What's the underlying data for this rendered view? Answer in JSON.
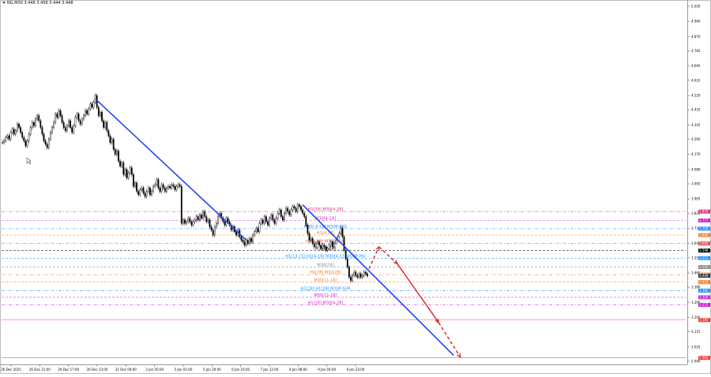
{
  "header": {
    "symbol_text": "NG,M30  3.446 3.456 3.444 3.448"
  },
  "colors": {
    "background": "#ffffff",
    "candle": "#000000",
    "trendline": "#1f45e6",
    "forecast": "#e02020",
    "grid_dash": "#c8c8c8"
  },
  "price_scale": {
    "min": 2.94,
    "max": 5.05,
    "ticks": [
      "5.050",
      "4.960",
      "4.870",
      "4.785",
      "4.695",
      "4.610",
      "4.520",
      "4.435",
      "4.345",
      "4.260",
      "4.170",
      "4.080",
      "3.995",
      "3.905",
      "3.820",
      "3.730",
      "3.640",
      "3.555",
      "3.465",
      "3.380",
      "3.290",
      "3.200",
      "3.115",
      "3.025",
      "2.940"
    ]
  },
  "time_scale": {
    "ticks": [
      "26 Dec 2025",
      "26 Dec 21:00",
      "29 Dec 17:00",
      "30 Dec 13:00",
      "31 Dec 09:00",
      "2 Jan 05:00",
      "5 Jan 01:00",
      "5 Jan 20:00",
      "6 Jan 16:00",
      "7 Jan 12:00",
      "8 Jan 08:00",
      "9 Jan 04:00",
      "9 Jan 23:00"
    ]
  },
  "levels": [
    {
      "label": "H1[78] M30[4-28]",
      "price": 3.83,
      "color": "#d6337a",
      "style": "dashdot",
      "badge": "3.830"
    },
    {
      "label": "M30[4-18]",
      "price": 3.777,
      "color": "#cc22cc",
      "style": "dash",
      "badge": "3.777"
    },
    {
      "label": "M30[ 4-18] M30P-RES",
      "price": 3.728,
      "color": "#1e90ff",
      "style": "dashdot",
      "badge": "3.728"
    },
    {
      "label": "H1[4-18]",
      "price": 3.69,
      "color": "#f08030",
      "style": "dash",
      "badge": "3.690"
    },
    {
      "label": "H1[4-18] M30[4-28]",
      "price": 3.64,
      "color": "#e05050",
      "style": "dashdot",
      "badge": "3.640"
    },
    {
      "label": "M30[4-18]",
      "price": 3.598,
      "color": "#000000",
      "style": "dash",
      "badge": "3.598"
    },
    {
      "label": "H1[13-15] H1[4-18] M30[4-13] M30P-PIV",
      "price": 3.553,
      "color": "#1e90ff",
      "style": "dash",
      "badge": "3.553"
    },
    {
      "label": "M30[24]",
      "price": 3.5,
      "color": "#888888",
      "style": "dash",
      "badge": "3.500"
    },
    {
      "label": "H1[28] M30[28]",
      "price": 3.455,
      "color": "#f08030",
      "style": "dashdot",
      "badge": "3.455"
    },
    {
      "label": "M30[11-18]",
      "price": 3.41,
      "color": "#f08030",
      "style": "dash",
      "badge": "3.410"
    },
    {
      "label": "H1[18] H1[28] M30P-SUP",
      "price": 3.36,
      "color": "#1e90ff",
      "style": "dashdot",
      "badge": "3.360"
    },
    {
      "label": "M30[11-18]",
      "price": 3.32,
      "color": "#cc22cc",
      "style": "dash",
      "badge": "3.320"
    },
    {
      "label": "H1[18] M30[4-28]",
      "price": 3.275,
      "color": "#cc22cc",
      "style": "dashdot",
      "badge": "3.275"
    },
    {
      "label": "",
      "price": 3.185,
      "color": "#ff3333",
      "style": "solid",
      "badge": "3.185"
    },
    {
      "label": "",
      "price": 2.96,
      "color": "#ff3333",
      "style": "solid",
      "badge": "2.960"
    }
  ],
  "current_price": {
    "value": "3.448",
    "badge_color": "#333333"
  },
  "trendlines": [
    {
      "from": {
        "index": 56,
        "price": 4.5
      },
      "to": {
        "index": 147,
        "price": 3.66
      }
    },
    {
      "from": {
        "index": 181,
        "price": 3.87
      },
      "to": {
        "index": 272,
        "price": 2.975
      }
    }
  ],
  "forecast": [
    {
      "from": {
        "index": 221,
        "price": 3.49
      },
      "to": {
        "index": 227,
        "price": 3.62
      },
      "style": "dashed"
    },
    {
      "from": {
        "index": 227,
        "price": 3.62
      },
      "to": {
        "index": 238,
        "price": 3.52
      },
      "style": "dashed"
    },
    {
      "from": {
        "index": 238,
        "price": 3.52
      },
      "to": {
        "index": 263,
        "price": 3.17
      },
      "style": "solid"
    },
    {
      "from": {
        "index": 263,
        "price": 3.17
      },
      "to": {
        "index": 276,
        "price": 2.965
      },
      "style": "dashed"
    }
  ],
  "chart_data": {
    "type": "candlestick",
    "title": "NG,M30",
    "ylim": [
      2.94,
      5.05
    ],
    "close": [
      4.24,
      4.25,
      4.27,
      4.28,
      4.26,
      4.3,
      4.32,
      4.29,
      4.31,
      4.35,
      4.33,
      4.3,
      4.27,
      4.25,
      4.22,
      4.25,
      4.29,
      4.33,
      4.36,
      4.34,
      4.38,
      4.4,
      4.37,
      4.33,
      4.29,
      4.25,
      4.23,
      4.21,
      4.26,
      4.3,
      4.33,
      4.36,
      4.41,
      4.39,
      4.43,
      4.4,
      4.36,
      4.33,
      4.31,
      4.34,
      4.37,
      4.33,
      4.3,
      4.34,
      4.39,
      4.41,
      4.37,
      4.35,
      4.38,
      4.4,
      4.43,
      4.41,
      4.44,
      4.47,
      4.45,
      4.48,
      4.52,
      4.45,
      4.4,
      4.42,
      4.37,
      4.33,
      4.36,
      4.31,
      4.28,
      4.24,
      4.26,
      4.2,
      4.17,
      4.19,
      4.13,
      4.1,
      4.12,
      4.05,
      4.08,
      4.03,
      4.06,
      4.09,
      4.05,
      3.98,
      4.0,
      3.95,
      3.93,
      3.96,
      3.97,
      3.94,
      3.92,
      3.95,
      3.97,
      3.93,
      3.95,
      3.98,
      3.99,
      4.02,
      3.97,
      3.95,
      3.99,
      3.97,
      3.95,
      3.97,
      3.98,
      3.97,
      3.99,
      3.98,
      3.96,
      3.98,
      3.99,
      3.98,
      3.76,
      3.78,
      3.76,
      3.77,
      3.79,
      3.77,
      3.75,
      3.77,
      3.78,
      3.8,
      3.78,
      3.81,
      3.79,
      3.83,
      3.8,
      3.77,
      3.78,
      3.74,
      3.72,
      3.69,
      3.74,
      3.76,
      3.8,
      3.82,
      3.79,
      3.77,
      3.75,
      3.79,
      3.77,
      3.75,
      3.72,
      3.74,
      3.71,
      3.69,
      3.72,
      3.68,
      3.66,
      3.65,
      3.63,
      3.66,
      3.64,
      3.67,
      3.65,
      3.69,
      3.71,
      3.73,
      3.71,
      3.76,
      3.78,
      3.76,
      3.8,
      3.77,
      3.75,
      3.79,
      3.81,
      3.78,
      3.76,
      3.79,
      3.82,
      3.84,
      3.8,
      3.78,
      3.82,
      3.85,
      3.83,
      3.81,
      3.84,
      3.86,
      3.85,
      3.83,
      3.87,
      3.86,
      3.84,
      3.82,
      3.8,
      3.75,
      3.7,
      3.66,
      3.67,
      3.64,
      3.62,
      3.64,
      3.65,
      3.63,
      3.61,
      3.63,
      3.62,
      3.6,
      3.61,
      3.63,
      3.65,
      3.62,
      3.64,
      3.66,
      3.68,
      3.7,
      3.73,
      3.68,
      3.6,
      3.55,
      3.5,
      3.44,
      3.42,
      3.45,
      3.47,
      3.45,
      3.44,
      3.46,
      3.44,
      3.45,
      3.47,
      3.46,
      3.448
    ]
  }
}
